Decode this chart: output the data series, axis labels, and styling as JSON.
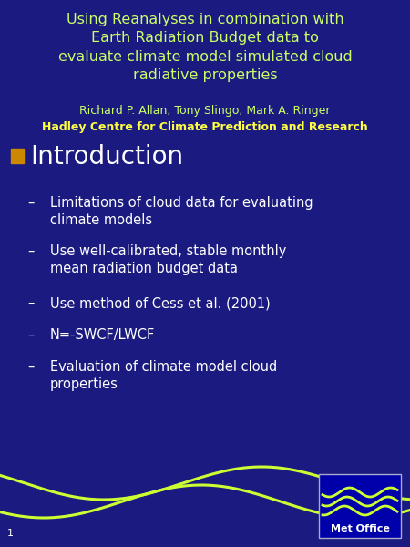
{
  "bg_color": "#1a1a80",
  "title_line1": "Using Reanalyses in combination with",
  "title_line2": "Earth Radiation Budget data to",
  "title_line3": "evaluate climate model simulated cloud",
  "title_line4": "radiative properties",
  "author_line": "Richard P. Allan, Tony Slingo, Mark A. Ringer",
  "affiliation_line": "Hadley Centre for Climate Prediction and Research",
  "title_color": "#ccff66",
  "author_color": "#ccff66",
  "affiliation_color": "#ffff44",
  "section_title": "Introduction",
  "section_bullet_color": "#cc8800",
  "section_title_color": "#ffffff",
  "bullet_color": "#ffffff",
  "bullets": [
    "Limitations of cloud data for evaluating\nclimate models",
    "Use well-calibrated, stable monthly\nmean radiation budget data",
    "Use method of Cess et al. (2001)",
    "N=-SWCF/LWCF",
    "Evaluation of climate model cloud\nproperties"
  ],
  "wave_color": "#ccff33",
  "page_number": "1",
  "met_office_label": "Met Office"
}
